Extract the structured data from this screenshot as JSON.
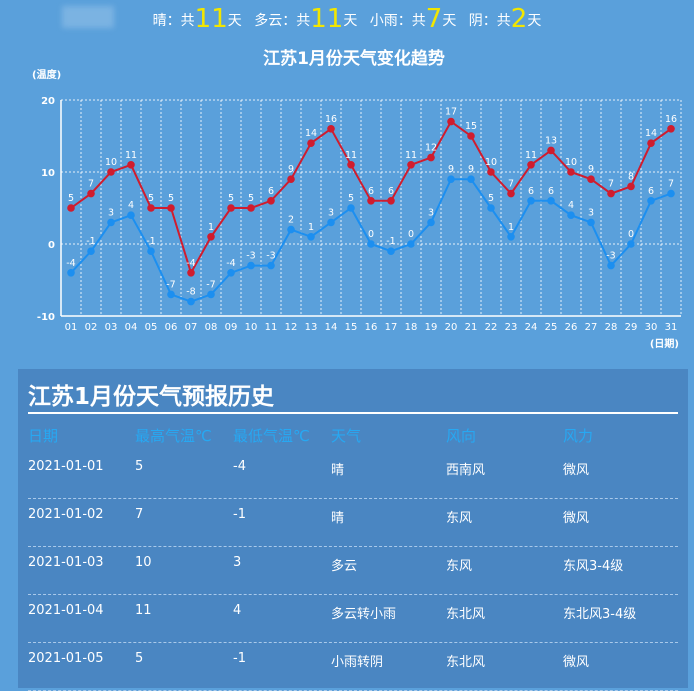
{
  "summary": [
    {
      "label": "晴：共",
      "count": "11",
      "unit": "天"
    },
    {
      "label": "多云：共",
      "count": "11",
      "unit": "天"
    },
    {
      "label": "小雨：共",
      "count": "7",
      "unit": "天"
    },
    {
      "label": "阴：共",
      "count": "2",
      "unit": "天"
    }
  ],
  "chart_data": {
    "type": "line",
    "title": "江苏1月份天气变化趋势",
    "ylabel": "(温度)",
    "xlabel": "(日期)",
    "ylim": [
      -10,
      20
    ],
    "yticks": [
      20,
      10,
      0,
      -10
    ],
    "grid": true,
    "categories": [
      "01",
      "02",
      "03",
      "04",
      "05",
      "06",
      "07",
      "08",
      "09",
      "10",
      "11",
      "12",
      "13",
      "14",
      "15",
      "16",
      "17",
      "18",
      "19",
      "20",
      "21",
      "22",
      "23",
      "24",
      "25",
      "26",
      "27",
      "28",
      "29",
      "30",
      "31"
    ],
    "series": [
      {
        "color": "#d01c2e",
        "values": [
          5,
          7,
          10,
          11,
          5,
          5,
          -4,
          1,
          5,
          5,
          6,
          9,
          14,
          16,
          11,
          6,
          6,
          11,
          12,
          17,
          15,
          10,
          7,
          11,
          13,
          10,
          9,
          7,
          8,
          14,
          16
        ]
      },
      {
        "color": "#1c8ff0",
        "values": [
          -4,
          -1,
          3,
          4,
          -1,
          -7,
          -8,
          -7,
          -4,
          -3,
          -3,
          2,
          1,
          3,
          5,
          0,
          -1,
          0,
          3,
          9,
          9,
          5,
          1,
          6,
          6,
          4,
          3,
          -3,
          0,
          6,
          7
        ]
      }
    ]
  },
  "table": {
    "title": "江苏1月份天气预报历史",
    "columns": [
      "日期",
      "最高气温℃",
      "最低气温℃",
      "天气",
      "风向",
      "风力"
    ],
    "rows": [
      [
        "2021-01-01",
        "5",
        "-4",
        "晴",
        "西南风",
        "微风"
      ],
      [
        "2021-01-02",
        "7",
        "-1",
        "晴",
        "东风",
        "微风"
      ],
      [
        "2021-01-03",
        "10",
        "3",
        "多云",
        "东风",
        "东风3-4级"
      ],
      [
        "2021-01-04",
        "11",
        "4",
        "多云转小雨",
        "东北风",
        "东北风3-4级"
      ],
      [
        "2021-01-05",
        "5",
        "-1",
        "小雨转阴",
        "东北风",
        "微风"
      ]
    ]
  }
}
